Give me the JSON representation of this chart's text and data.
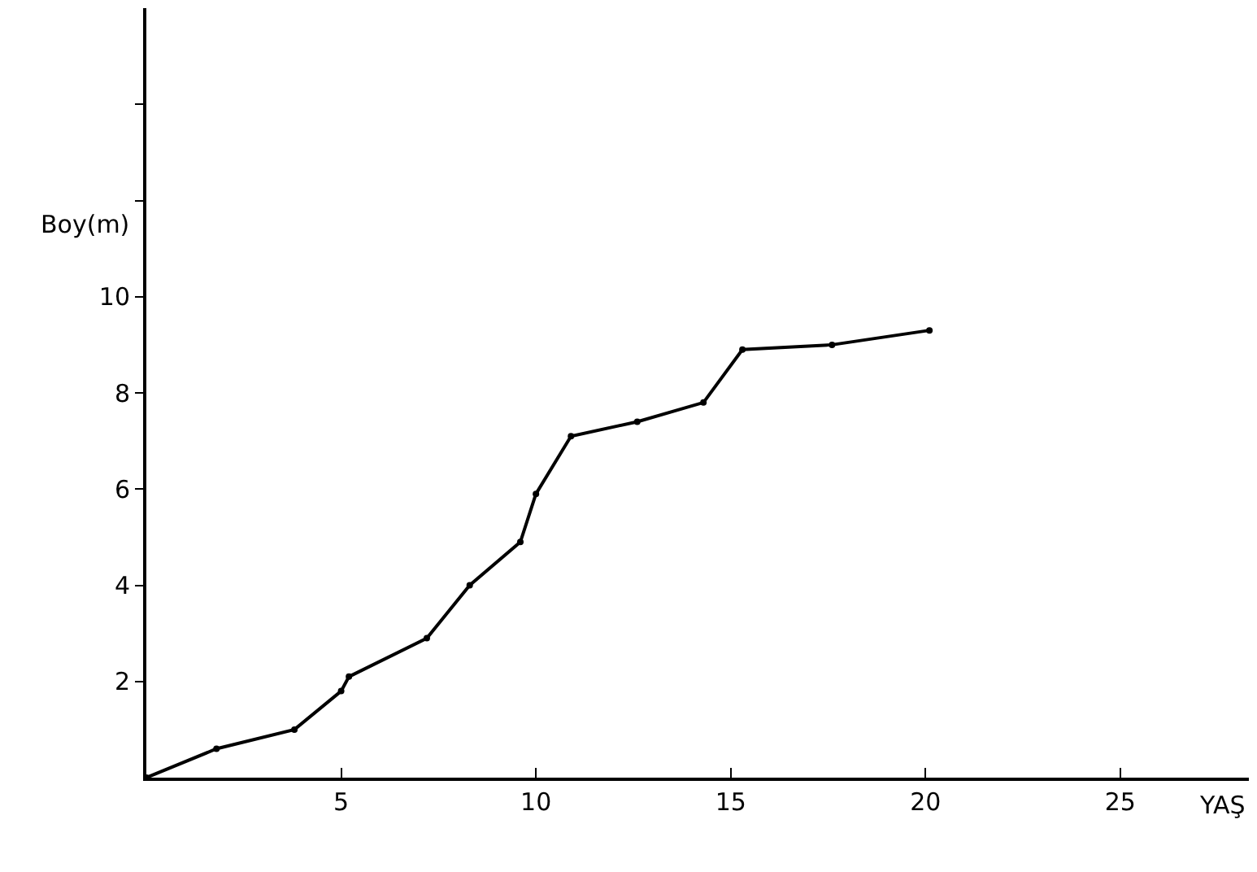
{
  "chart_data": {
    "type": "line",
    "xlabel": "YAŞ",
    "ylabel": "Boy(m)",
    "x": [
      0,
      1.8,
      3.8,
      5.0,
      5.2,
      7.2,
      8.3,
      9.6,
      10.0,
      10.9,
      12.6,
      14.3,
      15.3,
      17.6,
      20.1
    ],
    "series": [
      {
        "color": "#000000",
        "values": [
          0,
          0.6,
          1.0,
          1.8,
          2.1,
          2.9,
          4.0,
          4.9,
          5.9,
          7.1,
          7.4,
          7.8,
          8.9,
          9.0,
          9.3
        ]
      }
    ],
    "xlim": [
      0,
      28.3
    ],
    "ylim": [
      0,
      16
    ],
    "xticks": [
      5,
      10,
      15,
      20,
      25
    ],
    "yticks": [
      2,
      4,
      6,
      8,
      10,
      {
        "value": 12,
        "label": null
      },
      {
        "value": 14,
        "label": null
      }
    ],
    "marker": "circle",
    "line_style": "solid"
  }
}
